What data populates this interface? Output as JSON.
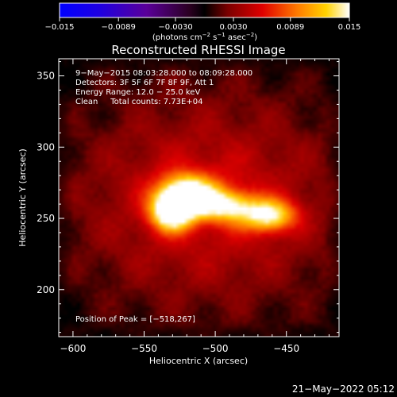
{
  "chart_data": {
    "type": "heatmap",
    "title": "Reconstructed RHESSI Image",
    "xlabel": "Heliocentric X (arcsec)",
    "ylabel": "Heliocentric Y (arcsec)",
    "xlim": [
      -610,
      -413
    ],
    "ylim": [
      167,
      362
    ],
    "xticks": [
      -600,
      -550,
      -500,
      -450
    ],
    "xtick_labels": [
      "−600",
      "−550",
      "−500",
      "−450"
    ],
    "yticks": [
      200,
      250,
      300,
      350
    ],
    "ytick_labels": [
      "200",
      "250",
      "300",
      "350"
    ],
    "colorbar": {
      "range": [
        -0.015,
        0.015
      ],
      "ticks": [
        -0.015,
        -0.0089,
        -0.003,
        0.003,
        0.0089,
        0.015
      ],
      "tick_labels": [
        "−0.015",
        "−0.0089",
        "−0.0030",
        "0.0030",
        "0.0089",
        "0.015"
      ],
      "label_main": "(photons cm",
      "label_exp1": "−2",
      "label_mid": " s",
      "label_exp2": "−1",
      "label_end": " asec",
      "label_exp3": "−2",
      "label_close": ")"
    },
    "annotations": [
      "9−May−2015 08:03:28.000 to 08:09:28.000",
      "Detectors: 3F 5F 6F 7F 8F 9F, Att 1",
      "Energy Range: 12.0 − 25.0 keV",
      "Clean     Total counts: 7.73E+04"
    ],
    "peak_label": "Position of Peak = [−518,267]",
    "peak": [
      -518,
      267
    ],
    "sources": [
      {
        "x": -520,
        "y": 266,
        "sx": 14,
        "sy": 10,
        "amp": 1.0
      },
      {
        "x": -531,
        "y": 254,
        "sx": 10,
        "sy": 9,
        "amp": 0.85
      },
      {
        "x": -492,
        "y": 259,
        "sx": 14,
        "sy": 8,
        "amp": 0.62
      },
      {
        "x": -462,
        "y": 252,
        "sx": 13,
        "sy": 8,
        "amp": 0.75
      }
    ]
  },
  "footer_timestamp": "21−May−2022 05:12"
}
